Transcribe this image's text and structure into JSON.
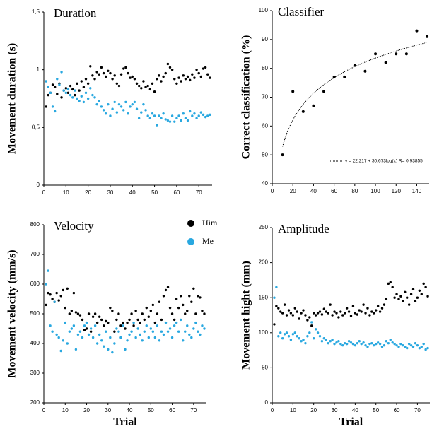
{
  "chart_data": [
    {
      "type": "scatter",
      "title": "Duration",
      "y_label": "Movement duration (s)",
      "x": [
        1,
        2,
        3,
        4,
        5,
        6,
        7,
        8,
        9,
        10,
        11,
        12,
        13,
        14,
        15,
        16,
        17,
        18,
        19,
        20,
        21,
        22,
        23,
        24,
        25,
        26,
        27,
        28,
        29,
        30,
        31,
        32,
        33,
        34,
        35,
        36,
        37,
        38,
        39,
        40,
        41,
        42,
        43,
        44,
        45,
        46,
        47,
        48,
        49,
        50,
        51,
        52,
        53,
        54,
        55,
        56,
        57,
        58,
        59,
        60,
        61,
        62,
        63,
        64,
        65,
        66,
        67,
        68,
        69,
        70,
        71,
        72,
        73,
        74,
        75
      ],
      "series": [
        {
          "name": "Him",
          "color": "#000000",
          "values": [
            0.68,
            0.78,
            0.8,
            0.87,
            0.85,
            0.79,
            0.88,
            0.76,
            0.82,
            0.84,
            0.8,
            0.86,
            0.83,
            0.78,
            0.88,
            0.82,
            0.9,
            0.85,
            0.92,
            0.88,
            1.03,
            0.95,
            0.92,
            0.98,
            0.96,
            1.02,
            0.97,
            0.94,
            0.99,
            0.97,
            0.92,
            0.95,
            0.88,
            0.86,
            0.96,
            1.01,
            1.02,
            0.97,
            0.93,
            0.94,
            0.92,
            0.88,
            0.86,
            0.84,
            0.9,
            0.85,
            0.86,
            0.83,
            0.88,
            0.81,
            0.92,
            0.95,
            0.9,
            0.94,
            0.97,
            1.05,
            1.02,
            1.0,
            0.92,
            0.88,
            0.93,
            0.9,
            0.95,
            0.92,
            0.94,
            0.91,
            0.96,
            0.93,
            1.0,
            0.97,
            0.94,
            1.01,
            1.02,
            0.96,
            0.93
          ]
        },
        {
          "name": "Me",
          "color": "#29a8e0",
          "values": [
            0.9,
            0.85,
            0.8,
            0.68,
            0.64,
            0.92,
            0.87,
            0.98,
            0.82,
            0.8,
            0.83,
            0.78,
            0.76,
            0.82,
            0.75,
            0.73,
            0.77,
            0.72,
            0.8,
            0.75,
            0.84,
            0.78,
            0.76,
            0.7,
            0.73,
            0.68,
            0.65,
            0.62,
            0.7,
            0.6,
            0.66,
            0.72,
            0.63,
            0.7,
            0.68,
            0.65,
            0.72,
            0.62,
            0.68,
            0.7,
            0.72,
            0.66,
            0.58,
            0.63,
            0.7,
            0.65,
            0.6,
            0.58,
            0.62,
            0.6,
            0.52,
            0.6,
            0.58,
            0.62,
            0.57,
            0.56,
            0.55,
            0.6,
            0.55,
            0.58,
            0.6,
            0.56,
            0.62,
            0.58,
            0.56,
            0.64,
            0.6,
            0.62,
            0.58,
            0.6,
            0.63,
            0.61,
            0.59,
            0.6,
            0.61
          ]
        }
      ],
      "xlim": [
        0,
        76
      ],
      "xticks": [
        0,
        10,
        20,
        30,
        40,
        50,
        60,
        70
      ],
      "ylim": [
        0,
        1.5
      ],
      "yticks": [
        0,
        {
          "value": 0.5,
          "label": "0,5"
        },
        1,
        {
          "value": 1.5,
          "label": "1,5"
        }
      ]
    },
    {
      "type": "scatter",
      "title": "Classifier",
      "y_label": "Correct classification (%)",
      "x": [
        10,
        20,
        30,
        40,
        50,
        60,
        70,
        80,
        90,
        100,
        110,
        120,
        130,
        140,
        150
      ],
      "values": [
        50,
        72,
        65,
        67,
        72,
        77,
        77,
        81,
        79,
        85,
        82,
        85,
        85,
        93,
        91
      ],
      "color": "#000000",
      "fit": {
        "intercept": 22.217,
        "slope": 30.673
      },
      "annotation": "y = 22,217 + 30,673log(x)    R= 0,93855",
      "xlim": [
        0,
        152
      ],
      "xticks": [
        0,
        20,
        40,
        60,
        80,
        100,
        120,
        140
      ],
      "ylim": [
        40,
        100
      ],
      "yticks": [
        40,
        50,
        60,
        70,
        80,
        90,
        100
      ]
    },
    {
      "type": "scatter",
      "title": "Velocity",
      "y_label": "Movement velocity (mm/s)",
      "x_label": "Trial",
      "legend": true,
      "x": [
        1,
        2,
        3,
        4,
        5,
        6,
        7,
        8,
        9,
        10,
        11,
        12,
        13,
        14,
        15,
        16,
        17,
        18,
        19,
        20,
        21,
        22,
        23,
        24,
        25,
        26,
        27,
        28,
        29,
        30,
        31,
        32,
        33,
        34,
        35,
        36,
        37,
        38,
        39,
        40,
        41,
        42,
        43,
        44,
        45,
        46,
        47,
        48,
        49,
        50,
        51,
        52,
        53,
        54,
        55,
        56,
        57,
        58,
        59,
        60,
        61,
        62,
        63,
        64,
        65,
        66,
        67,
        68,
        69,
        70,
        71,
        72,
        73,
        74,
        75
      ],
      "series": [
        {
          "name": "Him",
          "color": "#000000",
          "values": [
            530,
            570,
            565,
            550,
            540,
            570,
            545,
            560,
            580,
            520,
            585,
            500,
            510,
            570,
            505,
            500,
            495,
            480,
            445,
            450,
            500,
            440,
            490,
            500,
            470,
            490,
            480,
            460,
            475,
            470,
            520,
            510,
            440,
            480,
            500,
            460,
            470,
            450,
            470,
            480,
            500,
            460,
            510,
            480,
            470,
            500,
            480,
            520,
            490,
            510,
            530,
            470,
            500,
            540,
            480,
            560,
            580,
            590,
            520,
            500,
            480,
            550,
            520,
            560,
            530,
            500,
            510,
            560,
            540,
            585,
            500,
            560,
            555,
            510,
            500
          ]
        },
        {
          "name": "Me",
          "color": "#29a8e0",
          "values": [
            600,
            645,
            460,
            440,
            540,
            430,
            420,
            375,
            410,
            470,
            400,
            440,
            450,
            460,
            380,
            430,
            440,
            420,
            460,
            470,
            430,
            450,
            420,
            460,
            400,
            430,
            410,
            390,
            440,
            380,
            420,
            370,
            400,
            450,
            440,
            420,
            460,
            380,
            410,
            430,
            440,
            470,
            420,
            450,
            430,
            410,
            440,
            460,
            420,
            450,
            440,
            420,
            460,
            410,
            440,
            430,
            470,
            440,
            450,
            420,
            460,
            470,
            440,
            480,
            410,
            440,
            460,
            430,
            420,
            450,
            470,
            440,
            430,
            460,
            450
          ]
        }
      ],
      "xlim": [
        0,
        76
      ],
      "xticks": [
        0,
        10,
        20,
        30,
        40,
        50,
        60,
        70
      ],
      "ylim": [
        200,
        800
      ],
      "yticks": [
        200,
        300,
        400,
        500,
        600,
        700,
        800
      ]
    },
    {
      "type": "scatter",
      "title": "Amplitude",
      "y_label": "Movement hight (mm)",
      "x_label": "Trial",
      "x": [
        1,
        2,
        3,
        4,
        5,
        6,
        7,
        8,
        9,
        10,
        11,
        12,
        13,
        14,
        15,
        16,
        17,
        18,
        19,
        20,
        21,
        22,
        23,
        24,
        25,
        26,
        27,
        28,
        29,
        30,
        31,
        32,
        33,
        34,
        35,
        36,
        37,
        38,
        39,
        40,
        41,
        42,
        43,
        44,
        45,
        46,
        47,
        48,
        49,
        50,
        51,
        52,
        53,
        54,
        55,
        56,
        57,
        58,
        59,
        60,
        61,
        62,
        63,
        64,
        65,
        66,
        67,
        68,
        69,
        70,
        71,
        72,
        73,
        74,
        75
      ],
      "series": [
        {
          "name": "Him",
          "color": "#000000",
          "values": [
            112,
            138,
            135,
            130,
            128,
            140,
            125,
            132,
            128,
            125,
            135,
            130,
            120,
            128,
            132,
            125,
            118,
            122,
            110,
            128,
            125,
            128,
            130,
            126,
            134,
            130,
            128,
            140,
            125,
            130,
            128,
            122,
            130,
            125,
            128,
            135,
            130,
            124,
            138,
            128,
            126,
            132,
            130,
            140,
            128,
            135,
            125,
            130,
            128,
            132,
            138,
            130,
            135,
            140,
            148,
            170,
            172,
            165,
            150,
            155,
            148,
            152,
            145,
            158,
            150,
            140,
            155,
            162,
            145,
            150,
            160,
            155,
            170,
            165,
            152
          ]
        },
        {
          "name": "Me",
          "color": "#29a8e0",
          "values": [
            150,
            165,
            95,
            100,
            92,
            98,
            100,
            95,
            90,
            98,
            100,
            95,
            92,
            88,
            90,
            85,
            95,
            100,
            115,
            92,
            105,
            100,
            95,
            88,
            92,
            90,
            85,
            88,
            90,
            84,
            86,
            88,
            84,
            82,
            85,
            84,
            88,
            86,
            84,
            82,
            85,
            88,
            84,
            86,
            82,
            80,
            84,
            85,
            82,
            84,
            86,
            84,
            80,
            82,
            88,
            85,
            90,
            86,
            84,
            82,
            80,
            84,
            82,
            80,
            78,
            84,
            82,
            80,
            85,
            82,
            78,
            80,
            84,
            76,
            78
          ]
        }
      ],
      "xlim": [
        0,
        76
      ],
      "xticks": [
        0,
        10,
        20,
        30,
        40,
        50,
        60,
        70
      ],
      "ylim": [
        0,
        250
      ],
      "yticks": [
        0,
        50,
        100,
        150,
        200,
        250
      ]
    }
  ]
}
